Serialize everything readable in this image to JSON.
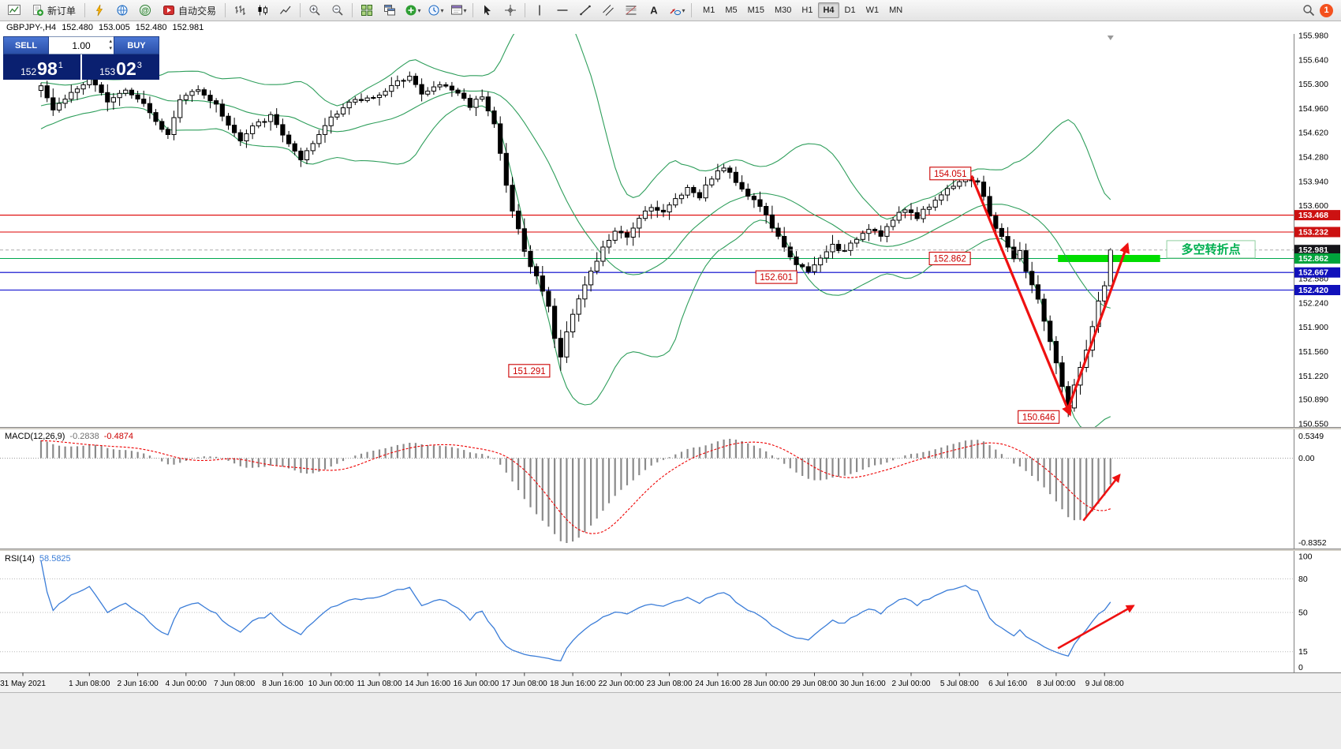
{
  "toolbar": {
    "new_order_label": "新订单",
    "autotrading_label": "自动交易",
    "timeframe_labels": [
      "M1",
      "M5",
      "M15",
      "M30",
      "H1",
      "H4",
      "D1",
      "W1",
      "MN"
    ],
    "active_timeframe": "H4",
    "notification_count": "1"
  },
  "icons": {
    "caret_down": "▾",
    "spinner_up": "▴",
    "spinner_down": "▾"
  },
  "chart_info": {
    "symbol_period": "GBPJPY-,H4",
    "open": "152.480",
    "high": "153.005",
    "low": "152.480",
    "close": "152.981"
  },
  "trade_panel": {
    "sell_label": "SELL",
    "buy_label": "BUY",
    "volume": "1.00",
    "sell_price_main": "152",
    "sell_price_big": "98",
    "sell_price_sup": "1",
    "buy_price_main": "153",
    "buy_price_big": "02",
    "buy_price_sup": "3"
  },
  "indicator_labels": {
    "macd": "MACD(12,26,9)",
    "macd_value": "-0.2838",
    "macd_signal": "-0.4874",
    "rsi": "RSI(14)",
    "rsi_value": "58.5825"
  },
  "chart_data": {
    "type": "candlestick",
    "symbol": "GBPJPY-",
    "period": "H4",
    "price_range": {
      "min": 150.55,
      "max": 155.98
    },
    "price_axis_labels": [
      "155.980",
      "155.640",
      "155.300",
      "154.960",
      "154.620",
      "154.280",
      "153.940",
      "153.600",
      "153.260",
      "152.920",
      "152.580",
      "152.240",
      "151.900",
      "151.560",
      "151.220",
      "150.890",
      "150.550"
    ],
    "time_axis_labels": [
      {
        "i": -3,
        "t": "31 May 2021"
      },
      {
        "i": 8,
        "t": "1 Jun 08:00"
      },
      {
        "i": 16,
        "t": "2 Jun 16:00"
      },
      {
        "i": 24,
        "t": "4 Jun 00:00"
      },
      {
        "i": 32,
        "t": "7 Jun 08:00"
      },
      {
        "i": 40,
        "t": "8 Jun 16:00"
      },
      {
        "i": 48,
        "t": "10 Jun 00:00"
      },
      {
        "i": 56,
        "t": "11 Jun 08:00"
      },
      {
        "i": 64,
        "t": "14 Jun 16:00"
      },
      {
        "i": 72,
        "t": "16 Jun 00:00"
      },
      {
        "i": 80,
        "t": "17 Jun 08:00"
      },
      {
        "i": 88,
        "t": "18 Jun 16:00"
      },
      {
        "i": 96,
        "t": "22 Jun 00:00"
      },
      {
        "i": 104,
        "t": "23 Jun 08:00"
      },
      {
        "i": 112,
        "t": "24 Jun 16:00"
      },
      {
        "i": 120,
        "t": "28 Jun 00:00"
      },
      {
        "i": 128,
        "t": "29 Jun 08:00"
      },
      {
        "i": 136,
        "t": "30 Jun 16:00"
      },
      {
        "i": 144,
        "t": "2 Jul 00:00"
      },
      {
        "i": 152,
        "t": "5 Jul 08:00"
      },
      {
        "i": 160,
        "t": "6 Jul 16:00"
      },
      {
        "i": 168,
        "t": "8 Jul 00:00"
      },
      {
        "i": 176,
        "t": "9 Jul 08:00"
      }
    ],
    "candle_count": 178,
    "close_path_anchors": [
      [
        0,
        155.3
      ],
      [
        2,
        154.95
      ],
      [
        5,
        155.18
      ],
      [
        8,
        155.35
      ],
      [
        11,
        155.08
      ],
      [
        14,
        155.24
      ],
      [
        17,
        155.04
      ],
      [
        19,
        154.8
      ],
      [
        21,
        154.58
      ],
      [
        23,
        155.08
      ],
      [
        26,
        155.25
      ],
      [
        29,
        155.0
      ],
      [
        31,
        154.74
      ],
      [
        33,
        154.5
      ],
      [
        35,
        154.7
      ],
      [
        38,
        154.85
      ],
      [
        40,
        154.6
      ],
      [
        43,
        154.22
      ],
      [
        45,
        154.46
      ],
      [
        48,
        154.85
      ],
      [
        51,
        155.04
      ],
      [
        54,
        155.1
      ],
      [
        57,
        155.2
      ],
      [
        61,
        155.44
      ],
      [
        63,
        155.15
      ],
      [
        66,
        155.3
      ],
      [
        69,
        155.18
      ],
      [
        71,
        155.0
      ],
      [
        73,
        155.15
      ],
      [
        75,
        154.75
      ],
      [
        76,
        154.32
      ],
      [
        77,
        153.88
      ],
      [
        78,
        153.52
      ],
      [
        79,
        153.3
      ],
      [
        80,
        152.95
      ],
      [
        81,
        152.75
      ],
      [
        82,
        152.6
      ],
      [
        83,
        152.42
      ],
      [
        84,
        152.2
      ],
      [
        85,
        151.75
      ],
      [
        86,
        151.46
      ],
      [
        87,
        151.86
      ],
      [
        88,
        152.1
      ],
      [
        89,
        152.3
      ],
      [
        91,
        152.66
      ],
      [
        93,
        153.0
      ],
      [
        95,
        153.25
      ],
      [
        97,
        153.14
      ],
      [
        99,
        153.45
      ],
      [
        101,
        153.6
      ],
      [
        103,
        153.5
      ],
      [
        105,
        153.7
      ],
      [
        107,
        153.85
      ],
      [
        109,
        153.74
      ],
      [
        111,
        154.0
      ],
      [
        113,
        154.14
      ],
      [
        115,
        153.95
      ],
      [
        117,
        153.75
      ],
      [
        119,
        153.6
      ],
      [
        121,
        153.3
      ],
      [
        123,
        153.0
      ],
      [
        125,
        152.8
      ],
      [
        127,
        152.66
      ],
      [
        129,
        152.86
      ],
      [
        131,
        153.05
      ],
      [
        133,
        152.95
      ],
      [
        135,
        153.15
      ],
      [
        137,
        153.3
      ],
      [
        139,
        153.2
      ],
      [
        141,
        153.4
      ],
      [
        143,
        153.55
      ],
      [
        145,
        153.45
      ],
      [
        147,
        153.6
      ],
      [
        149,
        153.76
      ],
      [
        151,
        153.9
      ],
      [
        153,
        154.0
      ],
      [
        155,
        153.92
      ],
      [
        156,
        153.7
      ],
      [
        157,
        153.46
      ],
      [
        158,
        153.3
      ],
      [
        159,
        153.18
      ],
      [
        160,
        153.0
      ],
      [
        161,
        152.86
      ],
      [
        162,
        152.95
      ],
      [
        163,
        152.7
      ],
      [
        164,
        152.5
      ],
      [
        165,
        152.28
      ],
      [
        166,
        152.0
      ],
      [
        167,
        151.7
      ],
      [
        168,
        151.4
      ],
      [
        169,
        151.05
      ],
      [
        170,
        150.78
      ],
      [
        171,
        151.1
      ],
      [
        172,
        151.32
      ],
      [
        173,
        151.55
      ],
      [
        174,
        151.9
      ],
      [
        175,
        152.25
      ],
      [
        176,
        152.48
      ],
      [
        177,
        152.981
      ]
    ],
    "key_extremes": [
      {
        "i": 86,
        "kind": "low",
        "price": 151.291
      },
      {
        "i": 125,
        "kind": "low",
        "price": 152.601
      },
      {
        "i": 153,
        "kind": "high",
        "price": 154.051
      },
      {
        "i": 170,
        "kind": "low",
        "price": 150.646
      }
    ],
    "last_candle": {
      "open": 152.48,
      "high": 153.005,
      "low": 152.48,
      "close": 152.981
    },
    "studies": {
      "bollinger": {
        "period": 20,
        "deviation": 2
      },
      "macd": {
        "fast": 12,
        "slow": 26,
        "signal": 9
      },
      "rsi": {
        "period": 14
      }
    },
    "macd_axis_labels": [
      "0.5349",
      "0.00",
      "-0.8352"
    ],
    "rsi_axis_labels": [
      "100",
      "80",
      "50",
      "15",
      "0"
    ],
    "rsi_levels": [
      80,
      50,
      15
    ],
    "hlines": [
      {
        "price": 153.468,
        "color": "#dd0000"
      },
      {
        "price": 153.232,
        "color": "#dd0000"
      },
      {
        "price": 152.862,
        "color": "#00a84f"
      },
      {
        "price": 152.667,
        "color": "#0000cc"
      },
      {
        "price": 152.42,
        "color": "#0000cc"
      }
    ],
    "price_tags": [
      {
        "label": "153.468",
        "price": 153.468,
        "bg": "#cc1111"
      },
      {
        "label": "153.232",
        "price": 153.232,
        "bg": "#cc1111"
      },
      {
        "label": "152.981",
        "price": 152.981,
        "bg": "#15151a"
      },
      {
        "label": "152.862",
        "price": 152.862,
        "bg": "#00a33c"
      },
      {
        "label": "152.667",
        "price": 152.667,
        "bg": "#1111bb"
      },
      {
        "label": "152.420",
        "price": 152.42,
        "bg": "#1111bb"
      }
    ],
    "current_price": 152.981,
    "annotations": {
      "price_labels": [
        {
          "text": "154.051",
          "i": 150.5,
          "price": 154.051
        },
        {
          "text": "152.862",
          "i": 150.4,
          "price": 152.862
        },
        {
          "text": "152.601",
          "i": 121.7,
          "price": 152.601
        },
        {
          "text": "151.291",
          "i": 80.8,
          "price": 151.291
        },
        {
          "text": "150.646",
          "i": 165.1,
          "price": 150.646
        }
      ],
      "trend_arrows": [
        {
          "i1": 154,
          "p1": 154.02,
          "i2": 170.3,
          "p2": 150.68
        },
        {
          "i1": 169.8,
          "p1": 150.72,
          "i2": 179.8,
          "p2": 153.06
        }
      ],
      "macd_arrow": {
        "i1": 172.5,
        "v1": -0.63,
        "i2": 178.5,
        "v2": -0.17
      },
      "rsi_arrow": {
        "i1": 168.3,
        "v1": 18,
        "i2": 180.8,
        "v2": 56
      },
      "support_zone": {
        "i1": 168.3,
        "i2": 185.2,
        "price": 152.862
      },
      "note": {
        "text": "多空转折点",
        "i": 186.3,
        "price": 152.99
      }
    }
  },
  "colors": {
    "bollinger": "#2e9e5b",
    "candle_up": "#ffffff",
    "candle_down": "#000000",
    "candle_stroke": "#000000",
    "macd_hist": "#8a8a8a",
    "macd_signal": "#ee0000",
    "rsi_line": "#3b7dd8",
    "arrow": "#ee1111",
    "zone": "#00dd00",
    "note_text": "#00b050",
    "label_red": "#cc0000"
  }
}
